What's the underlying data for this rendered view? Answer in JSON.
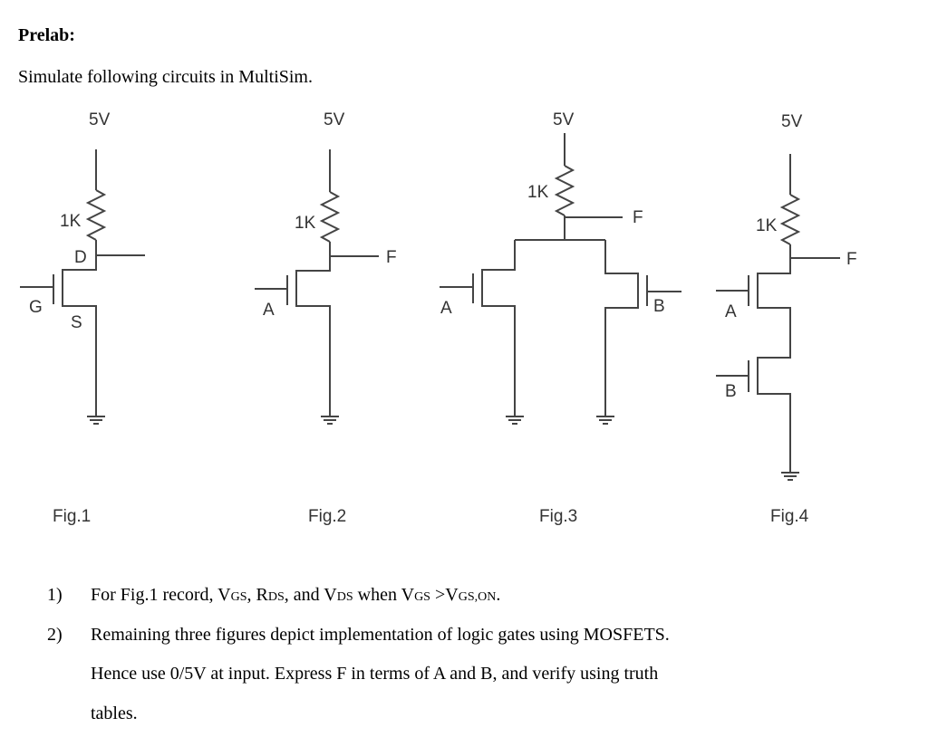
{
  "heading": "Prelab:",
  "intro": "Simulate following circuits in MultiSim.",
  "circuit_labels": {
    "supply": "5V",
    "resistor": "1K",
    "drain": "D",
    "gate": "G",
    "source": "S",
    "input_a": "A",
    "input_b": "B",
    "output": "F"
  },
  "figures": [
    "Fig.1",
    "Fig.2",
    "Fig.3",
    "Fig.4"
  ],
  "items": [
    {
      "number": "1)",
      "segments": [
        "For Fig.1 record, V",
        "GS",
        ", R",
        "DS",
        ", and V",
        "DS",
        " when V",
        "GS",
        " >V",
        "GS,ON",
        "."
      ]
    },
    {
      "number": "2)",
      "lines": [
        "Remaining three figures depict implementation of logic gates using MOSFETS.",
        "Hence use 0/5V at input. Express F in terms of A and B, and verify using truth",
        "tables."
      ]
    }
  ]
}
